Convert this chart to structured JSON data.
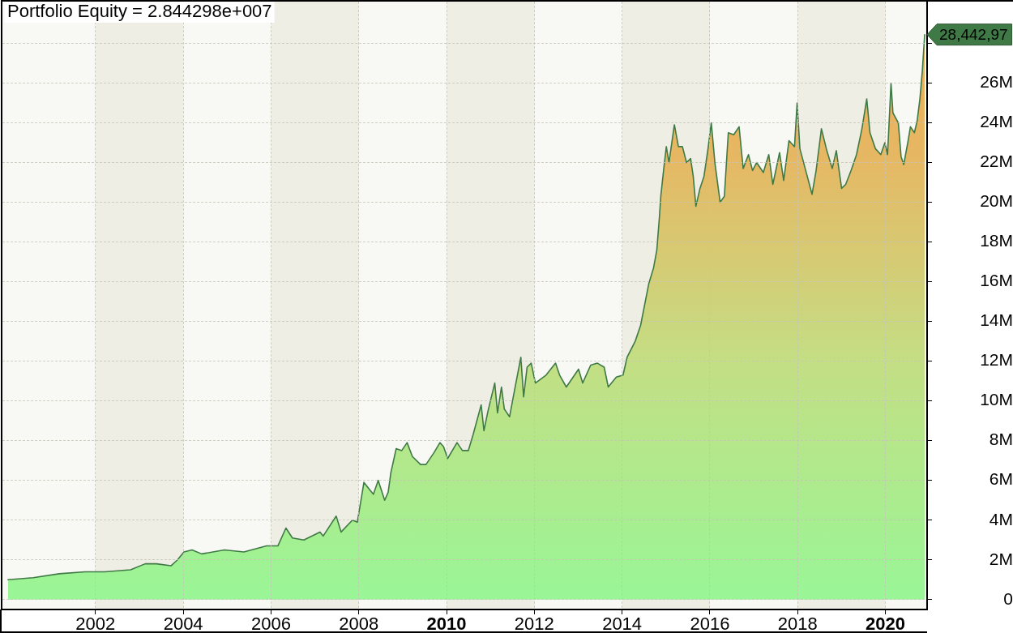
{
  "chart_data": {
    "type": "area",
    "title": "Portfolio Equity = 2.844298e+007",
    "x": [
      "2000-01-03",
      "2000-08-01",
      "2001-03-06",
      "2001-10-08",
      "2002-03-18",
      "2002-10-20",
      "2003-02-18",
      "2003-05-23",
      "2003-09-21",
      "2003-11-14",
      "2004-01-07",
      "2004-03-14",
      "2004-06-03",
      "2004-12-10",
      "2005-05-20",
      "2005-11-25",
      "2006-02-27",
      "2006-05-05",
      "2006-06-28",
      "2006-10-01",
      "2007-02-12",
      "2007-03-11",
      "2007-06-27",
      "2007-08-07",
      "2007-11-09",
      "2007-12-20",
      "2008-02-13",
      "2008-04-05",
      "2008-05-02",
      "2008-06-11",
      "2008-08-04",
      "2008-09-02",
      "2008-09-25",
      "2008-11-08",
      "2008-12-24",
      "2009-02-07",
      "2009-03-23",
      "2009-05-30",
      "2009-07-14",
      "2009-09-19",
      "2009-11-07",
      "2009-12-07",
      "2010-01-10",
      "2010-03-29",
      "2010-05-13",
      "2010-07-01",
      "2010-08-10",
      "2010-10-16",
      "2010-11-08",
      "2010-12-12",
      "2011-02-06",
      "2011-03-01",
      "2011-04-03",
      "2011-04-26",
      "2011-06-09",
      "2011-07-13",
      "2011-09-11",
      "2011-10-04",
      "2011-11-02",
      "2011-12-06",
      "2012-01-10",
      "2012-04-08",
      "2012-06-26",
      "2012-07-30",
      "2012-09-24",
      "2013-01-04",
      "2013-02-07",
      "2013-04-15",
      "2013-06-10",
      "2013-08-05",
      "2013-09-08",
      "2013-11-14",
      "2014-01-09",
      "2014-02-12",
      "2014-04-20",
      "2014-06-04",
      "2014-08-11",
      "2014-09-20",
      "2014-10-17",
      "2014-11-08",
      "2014-11-19",
      "2014-12-12",
      "2015-01-04",
      "2015-01-26",
      "2015-03-12",
      "2015-04-15",
      "2015-05-18",
      "2015-06-21",
      "2015-07-25",
      "2015-08-16",
      "2015-09-07",
      "2015-10-11",
      "2015-11-13",
      "2015-12-17",
      "2016-01-13",
      "2016-02-12",
      "2016-03-27",
      "2016-05-01",
      "2016-06-03",
      "2016-07-18",
      "2016-09-01",
      "2016-10-05",
      "2016-11-18",
      "2016-12-22",
      "2017-01-25",
      "2017-03-22",
      "2017-05-06",
      "2017-06-09",
      "2017-08-04",
      "2017-09-07",
      "2017-10-21",
      "2017-12-06",
      "2017-12-28",
      "2018-01-20",
      "2018-03-05",
      "2018-05-01",
      "2018-06-04",
      "2018-07-18",
      "2018-09-01",
      "2018-10-16",
      "2018-11-19",
      "2019-01-02",
      "2019-02-05",
      "2019-03-22",
      "2019-05-06",
      "2019-06-20",
      "2019-07-30",
      "2019-08-26",
      "2019-10-10",
      "2019-11-24",
      "2019-12-28",
      "2020-01-19",
      "2020-02-17",
      "2020-03-04",
      "2020-04-18",
      "2020-05-11",
      "2020-06-02",
      "2020-07-06",
      "2020-07-28",
      "2020-08-30",
      "2020-09-22",
      "2020-10-15",
      "2020-11-04",
      "2020-11-24"
    ],
    "series": [
      {
        "color": "#3f7a46",
        "values": [
          1.0,
          1.1,
          1.3,
          1.4,
          1.4,
          1.5,
          1.8,
          1.8,
          1.7,
          2.0,
          2.4,
          2.5,
          2.3,
          2.5,
          2.4,
          2.7,
          2.7,
          3.6,
          3.1,
          3.0,
          3.4,
          3.2,
          4.2,
          3.4,
          4.0,
          3.9,
          5.9,
          5.5,
          5.3,
          6.0,
          5.0,
          5.4,
          6.4,
          7.6,
          7.5,
          7.9,
          7.2,
          6.8,
          6.8,
          7.4,
          7.9,
          7.7,
          7.1,
          7.9,
          7.5,
          7.5,
          8.3,
          9.8,
          8.5,
          9.5,
          10.9,
          9.4,
          10.7,
          9.6,
          9.2,
          10.3,
          12.2,
          10.2,
          11.7,
          11.9,
          10.9,
          11.3,
          11.9,
          11.3,
          10.7,
          11.6,
          10.9,
          11.8,
          11.9,
          11.7,
          10.7,
          11.2,
          11.3,
          12.2,
          13.0,
          13.8,
          15.9,
          16.7,
          17.6,
          19.3,
          20.3,
          21.6,
          22.8,
          22.0,
          23.9,
          22.8,
          22.8,
          22.0,
          22.2,
          21.3,
          19.8,
          20.7,
          21.3,
          22.7,
          24.0,
          22.0,
          20.0,
          20.3,
          23.5,
          23.4,
          23.8,
          21.7,
          22.4,
          21.6,
          22.0,
          21.5,
          22.4,
          20.9,
          22.5,
          21.1,
          23.1,
          22.8,
          25.0,
          22.7,
          21.7,
          20.4,
          21.6,
          23.7,
          22.6,
          21.7,
          22.6,
          20.7,
          20.9,
          21.6,
          22.4,
          23.7,
          25.2,
          23.5,
          22.7,
          22.4,
          23.0,
          22.4,
          26.0,
          24.5,
          24.0,
          22.3,
          21.9,
          23.0,
          23.8,
          23.5,
          24.1,
          25.2,
          26.6,
          28.44
        ]
      }
    ],
    "xlim": [
      "1999-11-18",
      "2020-12-14"
    ],
    "xticks": [
      "2002",
      "2004",
      "2006",
      "2008",
      "2010",
      "2012",
      "2014",
      "2016",
      "2018",
      "2020"
    ],
    "ylim": [
      -0.5,
      30.1
    ],
    "yticks": [
      0,
      {
        "value": 2,
        "label": "2M"
      },
      {
        "value": 4,
        "label": "4M"
      },
      {
        "value": 6,
        "label": "6M"
      },
      {
        "value": 8,
        "label": "8M"
      },
      {
        "value": 10,
        "label": "10M"
      },
      {
        "value": 12,
        "label": "12M"
      },
      {
        "value": 14,
        "label": "14M"
      },
      {
        "value": 16,
        "label": "16M"
      },
      {
        "value": 18,
        "label": "18M"
      },
      {
        "value": 20,
        "label": "20M"
      },
      {
        "value": 22,
        "label": "22M"
      },
      {
        "value": 24,
        "label": "24M"
      },
      {
        "value": 26,
        "label": "26M"
      },
      {
        "value": 28,
        "label": null
      }
    ],
    "grid": true,
    "bands": [
      {
        "axis": "x",
        "from": "2002",
        "to": "2004",
        "color": "#efeee4"
      },
      {
        "axis": "x",
        "from": "2006",
        "to": "2008",
        "color": "#efeee4"
      },
      {
        "axis": "x",
        "from": "2010",
        "to": "2012",
        "color": "#efeee4"
      },
      {
        "axis": "x",
        "from": "2014",
        "to": "2016",
        "color": "#efeee4"
      },
      {
        "axis": "x",
        "from": "2018",
        "to": "2020",
        "color": "#efeee4"
      }
    ],
    "annotations": [
      {
        "text": "28,442,97",
        "x": "2020-11-24",
        "y": 28.44
      }
    ]
  }
}
